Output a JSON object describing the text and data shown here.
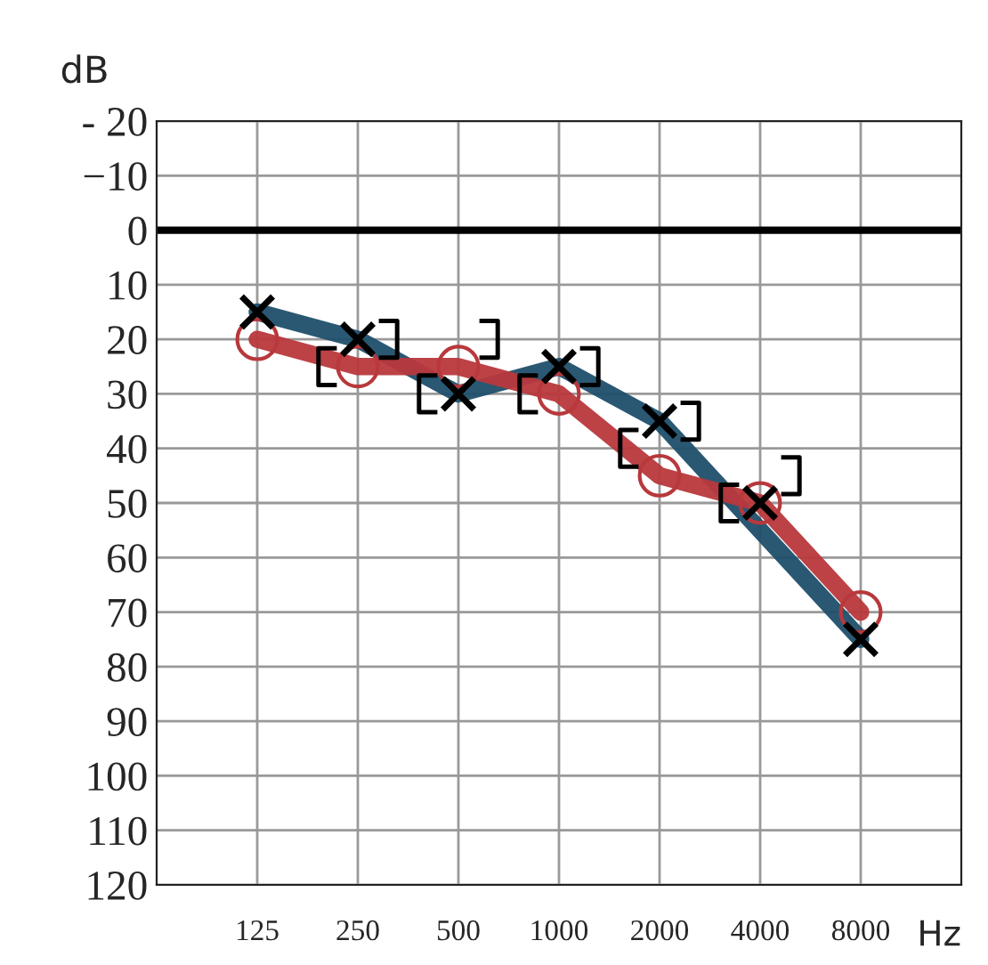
{
  "chart_data": {
    "type": "line",
    "xlabel": "Hz",
    "ylabel": "dB",
    "categories": [
      "125",
      "250",
      "500",
      "1000",
      "2000",
      "4000",
      "8000"
    ],
    "series": [
      {
        "color": "#1f4f6b",
        "values": [
          15,
          20,
          30,
          25,
          35,
          55,
          75
        ],
        "line_style": "solid"
      },
      {
        "color": "#b8383c",
        "values": [
          20,
          25,
          25,
          30,
          45,
          50,
          70
        ],
        "marker": "circle",
        "line_style": "solid"
      },
      {
        "type": "scatter",
        "color": "#000000",
        "values": [
          15,
          20,
          30,
          25,
          35,
          50,
          75
        ],
        "marker": "cross"
      },
      {
        "type": "scatter",
        "color": "#000000",
        "values": [
          null,
          25,
          30,
          30,
          40,
          50,
          null
        ]
      },
      {
        "type": "scatter",
        "color": "#000000",
        "values": [
          null,
          20,
          20,
          25,
          35,
          45,
          null
        ]
      }
    ],
    "ylim": [
      120,
      -20
    ],
    "yticks": [
      {
        "value": -20,
        "label": "- 20"
      },
      {
        "value": -10,
        "label": "−10"
      },
      0,
      10,
      20,
      30,
      40,
      50,
      60,
      70,
      80,
      90,
      100,
      110,
      120
    ],
    "ref_lines": [
      {
        "axis": "y",
        "value": 0,
        "color": "#000000"
      }
    ],
    "grid": true,
    "legend": false
  }
}
